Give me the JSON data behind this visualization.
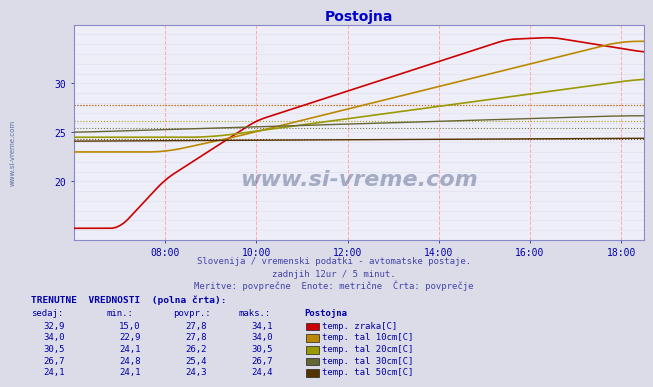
{
  "title": "Postojna",
  "subtitle1": "Slovenija / vremenski podatki - avtomatske postaje.",
  "subtitle2": "zadnjih 12ur / 5 minut.",
  "subtitle3": "Meritve: povprečne  Enote: metrične  Črta: povprečje",
  "background_color": "#dcdce8",
  "plot_bg_color": "#eeeef8",
  "title_color": "#0000cc",
  "subtitle_color": "#4444aa",
  "label_color": "#0000aa",
  "watermark": "www.si-vreme.com",
  "series_colors": [
    "#cc0000",
    "#bb8800",
    "#999900",
    "#666633",
    "#553300"
  ],
  "series_labels": [
    "temp. zraka[C]",
    "temp. tal 10cm[C]",
    "temp. tal 20cm[C]",
    "temp. tal 30cm[C]",
    "temp. tal 50cm[C]"
  ],
  "legend_colors": [
    "#cc0000",
    "#bb8800",
    "#999900",
    "#666633",
    "#553300"
  ],
  "table_header": "TRENUTNE  VREDNOSTI  (polna črta):",
  "table_cols": [
    "sedaj:",
    "min.:",
    "povpr.:",
    "maks.:",
    "Postojna"
  ],
  "table_data": [
    [
      32.9,
      15.0,
      27.8,
      34.1
    ],
    [
      34.0,
      22.9,
      27.8,
      34.0
    ],
    [
      30.5,
      24.1,
      26.2,
      30.5
    ],
    [
      26.7,
      24.8,
      25.4,
      26.7
    ],
    [
      24.1,
      24.1,
      24.3,
      24.4
    ]
  ],
  "avg_values": [
    27.8,
    27.8,
    26.2,
    25.4,
    24.3
  ],
  "ylim": [
    14,
    36
  ],
  "yticks": [
    20,
    25,
    30
  ],
  "hour_ticks": [
    8,
    10,
    12,
    14,
    16,
    18
  ]
}
